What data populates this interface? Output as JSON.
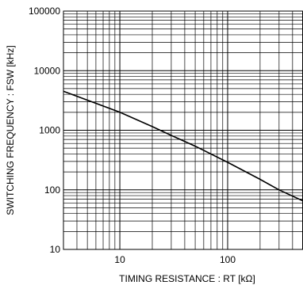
{
  "chart_data": {
    "type": "line",
    "title": "",
    "xlabel": "TIMING RESISTANCE : RT [kΩ]",
    "ylabel": "SWITCHING FREQUENCY : FSW [kHz]",
    "x_scale": "log",
    "y_scale": "log",
    "xlim": [
      3,
      500
    ],
    "ylim": [
      10,
      100000
    ],
    "x_ticks": [
      10,
      100
    ],
    "x_tick_labels": [
      "10",
      "100"
    ],
    "y_ticks": [
      10,
      100,
      1000,
      10000,
      100000
    ],
    "y_tick_labels": [
      "10",
      "100",
      "1000",
      "10000",
      "100000"
    ],
    "grid": true,
    "legend": "none",
    "line_color": "#000000",
    "series": [
      {
        "x": [
          3,
          5,
          10,
          20,
          30,
          50,
          100,
          200,
          300,
          500
        ],
        "y": [
          4500,
          3200,
          2000,
          1150,
          820,
          540,
          290,
          150,
          100,
          65
        ]
      }
    ]
  }
}
